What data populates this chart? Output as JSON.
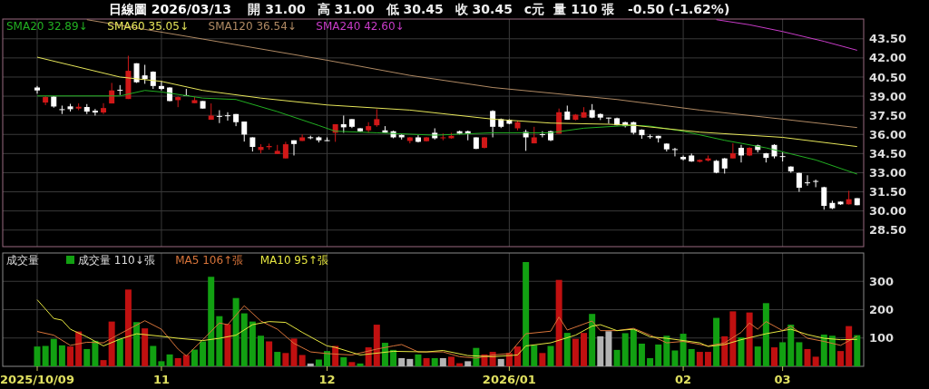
{
  "chart_data": [
    {
      "type": "candlestick",
      "title": "日線圖 2026/03/13",
      "annotations": [
        "開 31.00",
        "高 31.00",
        "低 30.45",
        "收 30.45",
        "c元",
        "量 110 張",
        "-0.50 (-1.62%)"
      ],
      "categories": [
        "2025/10/09",
        null,
        null,
        null,
        null,
        null,
        null,
        null,
        null,
        null,
        null,
        null,
        null,
        null,
        null,
        "11",
        null,
        null,
        null,
        null,
        null,
        null,
        null,
        null,
        null,
        null,
        null,
        null,
        null,
        null,
        null,
        null,
        null,
        null,
        null,
        "12",
        null,
        null,
        null,
        null,
        null,
        null,
        null,
        null,
        null,
        null,
        null,
        null,
        null,
        null,
        null,
        null,
        null,
        null,
        null,
        null,
        null,
        "2026/01",
        null,
        null,
        null,
        null,
        null,
        null,
        null,
        null,
        null,
        null,
        null,
        null,
        null,
        null,
        null,
        null,
        null,
        null,
        null,
        null,
        "02",
        null,
        null,
        null,
        null,
        null,
        null,
        null,
        null,
        null,
        null,
        null,
        "03",
        null,
        null,
        null,
        null,
        null,
        null,
        null,
        null,
        null
      ],
      "ohlc": [
        [
          39.68,
          39.8,
          39.2,
          39.45
        ],
        [
          38.5,
          39.0,
          38.3,
          38.93
        ],
        [
          38.97,
          39.0,
          38.1,
          38.19
        ],
        [
          37.98,
          38.26,
          37.6,
          37.95
        ],
        [
          38.2,
          38.4,
          37.8,
          37.98
        ],
        [
          38.03,
          38.43,
          37.9,
          38.17
        ],
        [
          38.15,
          38.38,
          37.6,
          37.79
        ],
        [
          37.86,
          38.0,
          37.48,
          37.72
        ],
        [
          37.72,
          38.45,
          37.6,
          38.07
        ],
        [
          38.43,
          40.04,
          38.43,
          39.45
        ],
        [
          39.5,
          39.87,
          39.09,
          39.45
        ],
        [
          38.78,
          42.17,
          38.78,
          40.99
        ],
        [
          41.58,
          41.58,
          40.04,
          40.09
        ],
        [
          40.63,
          41.46,
          39.97,
          40.35
        ],
        [
          40.92,
          40.95,
          39.57,
          39.8
        ],
        [
          39.8,
          40.2,
          39.45,
          39.57
        ],
        [
          39.68,
          39.7,
          38.6,
          38.62
        ],
        [
          38.69,
          38.98,
          38.14,
          38.93
        ],
        [
          39.08,
          39.57,
          39.0,
          39.05
        ],
        [
          38.45,
          38.93,
          38.45,
          38.69
        ],
        [
          38.62,
          38.62,
          38.03,
          38.03
        ],
        [
          37.15,
          38.43,
          37.15,
          37.48
        ],
        [
          37.45,
          37.9,
          36.89,
          37.43
        ],
        [
          37.5,
          37.74,
          37.08,
          37.48
        ],
        [
          37.6,
          37.6,
          36.65,
          36.96
        ],
        [
          37.01,
          37.01,
          35.44,
          35.99
        ],
        [
          35.77,
          35.77,
          34.66,
          35.02
        ],
        [
          34.78,
          35.23,
          34.52,
          35.02
        ],
        [
          35.0,
          35.28,
          34.8,
          35.09
        ],
        [
          34.47,
          35.18,
          34.47,
          34.71
        ],
        [
          34.12,
          35.42,
          34.12,
          35.23
        ],
        [
          35.54,
          35.54,
          34.35,
          35.25
        ],
        [
          35.49,
          36.0,
          35.49,
          35.77
        ],
        [
          35.78,
          35.9,
          35.62,
          35.77
        ],
        [
          35.77,
          35.85,
          35.37,
          35.54
        ],
        [
          35.55,
          35.77,
          35.49,
          35.52
        ],
        [
          36.13,
          36.8,
          35.42,
          36.8
        ],
        [
          36.8,
          37.48,
          36.13,
          36.56
        ],
        [
          37.2,
          37.2,
          36.5,
          36.6
        ],
        [
          36.48,
          36.5,
          36.2,
          36.25
        ],
        [
          36.32,
          36.96,
          36.13,
          36.65
        ],
        [
          36.72,
          37.98,
          36.6,
          37.2
        ],
        [
          36.32,
          36.65,
          36.13,
          36.13
        ],
        [
          36.25,
          36.3,
          35.7,
          35.77
        ],
        [
          35.96,
          36.0,
          35.6,
          35.77
        ],
        [
          35.49,
          35.8,
          35.3,
          35.77
        ],
        [
          35.77,
          35.94,
          35.37,
          35.42
        ],
        [
          35.47,
          35.8,
          35.44,
          35.77
        ],
        [
          36.13,
          36.48,
          35.6,
          35.7
        ],
        [
          35.72,
          36.08,
          35.54,
          35.77
        ],
        [
          35.7,
          36.13,
          35.66,
          35.89
        ],
        [
          36.25,
          36.3,
          36.0,
          36.06
        ],
        [
          36.25,
          36.3,
          35.54,
          36.06
        ],
        [
          35.77,
          35.77,
          34.85,
          34.87
        ],
        [
          34.95,
          35.8,
          34.9,
          35.77
        ],
        [
          37.84,
          37.9,
          35.77,
          36.6
        ],
        [
          37.2,
          37.25,
          36.5,
          36.6
        ],
        [
          37.15,
          37.2,
          36.8,
          36.84
        ],
        [
          36.48,
          37.08,
          36.32,
          36.96
        ],
        [
          36.2,
          36.37,
          34.71,
          35.77
        ],
        [
          35.3,
          36.6,
          35.3,
          35.77
        ],
        [
          36.02,
          36.25,
          35.77,
          36.0
        ],
        [
          36.25,
          36.3,
          35.47,
          35.54
        ],
        [
          36.06,
          38.03,
          36.06,
          37.74
        ],
        [
          37.79,
          38.26,
          37.15,
          37.15
        ],
        [
          37.15,
          37.6,
          37.1,
          37.55
        ],
        [
          37.32,
          38.14,
          37.32,
          37.74
        ],
        [
          37.91,
          38.38,
          37.27,
          37.32
        ],
        [
          37.6,
          37.65,
          37.13,
          37.32
        ],
        [
          37.32,
          37.32,
          36.84,
          37.3
        ],
        [
          37.27,
          37.32,
          36.7,
          36.72
        ],
        [
          36.96,
          37.0,
          36.55,
          36.65
        ],
        [
          36.96,
          37.0,
          36.0,
          36.13
        ],
        [
          36.37,
          36.4,
          35.66,
          35.94
        ],
        [
          35.86,
          36.0,
          35.66,
          35.84
        ],
        [
          35.89,
          35.9,
          35.37,
          35.7
        ],
        [
          35.28,
          35.3,
          34.66,
          34.83
        ],
        [
          34.85,
          34.95,
          34.28,
          34.83
        ],
        [
          34.24,
          34.35,
          33.95,
          34.05
        ],
        [
          34.35,
          34.5,
          33.85,
          33.88
        ],
        [
          33.86,
          34.05,
          33.8,
          34.0
        ],
        [
          33.95,
          34.35,
          33.88,
          34.12
        ],
        [
          33.93,
          34.0,
          32.95,
          33.0
        ],
        [
          34.12,
          34.15,
          32.93,
          33.33
        ],
        [
          34.12,
          35.3,
          34.12,
          34.52
        ],
        [
          34.95,
          35.18,
          33.8,
          34.35
        ],
        [
          34.35,
          35.0,
          34.3,
          34.95
        ],
        [
          35.14,
          35.2,
          34.59,
          34.78
        ],
        [
          34.52,
          34.55,
          33.8,
          34.16
        ],
        [
          35.18,
          35.23,
          34.12,
          34.28
        ],
        [
          34.3,
          34.59,
          33.88,
          34.26
        ],
        [
          33.48,
          33.5,
          33.0,
          33.1
        ],
        [
          32.98,
          33.0,
          31.5,
          31.82
        ],
        [
          32.24,
          32.8,
          31.98,
          32.22
        ],
        [
          32.35,
          32.46,
          31.86,
          32.33
        ],
        [
          31.86,
          31.9,
          30.1,
          30.4
        ],
        [
          30.63,
          30.8,
          30.14,
          30.21
        ],
        [
          30.73,
          30.75,
          30.48,
          30.52
        ],
        [
          30.52,
          31.58,
          30.5,
          30.92
        ],
        [
          31.0,
          31.0,
          30.45,
          30.45
        ]
      ],
      "colors": [
        "#ffffff",
        "#d01818",
        "#ffffff",
        "#ffffff",
        "#ffffff",
        "#d01818",
        "#ffffff",
        "#ffffff",
        "#d01818",
        "#d01818",
        "#ffffff",
        "#d01818",
        "#ffffff",
        "#ffffff",
        "#ffffff",
        "#ffffff",
        "#ffffff",
        "#d01818",
        "#ffffff",
        "#d01818",
        "#ffffff",
        "#d01818",
        "#ffffff",
        "#ffffff",
        "#ffffff",
        "#ffffff",
        "#ffffff",
        "#d01818",
        "#d01818",
        "#d01818",
        "#d01818",
        "#ffffff",
        "#d01818",
        "#ffffff",
        "#ffffff",
        "#ffffff",
        "#d01818",
        "#ffffff",
        "#ffffff",
        "#ffffff",
        "#d01818",
        "#d01818",
        "#ffffff",
        "#ffffff",
        "#ffffff",
        "#d01818",
        "#ffffff",
        "#d01818",
        "#ffffff",
        "#d01818",
        "#d01818",
        "#ffffff",
        "#ffffff",
        "#ffffff",
        "#d01818",
        "#ffffff",
        "#ffffff",
        "#ffffff",
        "#d01818",
        "#ffffff",
        "#d01818",
        "#ffffff",
        "#ffffff",
        "#d01818",
        "#ffffff",
        "#d01818",
        "#d01818",
        "#ffffff",
        "#ffffff",
        "#ffffff",
        "#ffffff",
        "#ffffff",
        "#ffffff",
        "#ffffff",
        "#ffffff",
        "#ffffff",
        "#ffffff",
        "#ffffff",
        "#ffffff",
        "#ffffff",
        "#d01818",
        "#d01818",
        "#ffffff",
        "#ffffff",
        "#d01818",
        "#ffffff",
        "#d01818",
        "#ffffff",
        "#ffffff",
        "#ffffff",
        "#ffffff",
        "#ffffff",
        "#ffffff",
        "#ffffff",
        "#ffffff",
        "#ffffff",
        "#ffffff",
        "#ffffff",
        "#d01818",
        "#ffffff"
      ],
      "series": [
        {
          "type": "line",
          "name": "SMA20 32.89↓",
          "color": "#22b022",
          "values": [
            39.02,
            null,
            null,
            null,
            null,
            null,
            null,
            null,
            null,
            null,
            39.02,
            null,
            null,
            39.45,
            null,
            39.33,
            null,
            null,
            null,
            null,
            38.85,
            null,
            null,
            null,
            38.74,
            null,
            null,
            null,
            null,
            37.79,
            null,
            null,
            null,
            null,
            36.7,
            null,
            36.25,
            null,
            null,
            null,
            null,
            36.13,
            null,
            null,
            null,
            null,
            null,
            null,
            35.94,
            null,
            null,
            null,
            null,
            null,
            null,
            36.13,
            null,
            null,
            null,
            null,
            null,
            null,
            36.13,
            null,
            null,
            null,
            36.49,
            null,
            null,
            null,
            36.65,
            null,
            36.72,
            null,
            36.65,
            null,
            null,
            null,
            36.25,
            null,
            null,
            null,
            null,
            35.54,
            null,
            null,
            null,
            null,
            34.95,
            null,
            null,
            null,
            null,
            null,
            34.0,
            null,
            null,
            null,
            null,
            32.89
          ]
        },
        {
          "type": "line",
          "name": "SMA60 35.05↓",
          "color": "#e6e65a",
          "values": [
            42.06,
            null,
            null,
            null,
            null,
            null,
            null,
            null,
            null,
            null,
            40.5,
            null,
            null,
            null,
            null,
            40.16,
            null,
            null,
            null,
            null,
            39.45,
            null,
            null,
            null,
            null,
            null,
            null,
            38.85,
            null,
            null,
            null,
            null,
            null,
            null,
            null,
            38.31,
            null,
            null,
            null,
            null,
            null,
            null,
            null,
            null,
            null,
            37.91,
            null,
            null,
            null,
            null,
            null,
            null,
            null,
            null,
            null,
            37.2,
            null,
            null,
            null,
            null,
            null,
            null,
            36.89,
            null,
            null,
            null,
            null,
            null,
            null,
            36.8,
            null,
            null,
            36.72,
            null,
            null,
            null,
            null,
            null,
            null,
            null,
            36.18,
            null,
            null,
            null,
            null,
            null,
            null,
            null,
            null,
            null,
            35.77,
            null,
            null,
            null,
            null,
            null,
            null,
            null,
            null,
            35.05
          ]
        },
        {
          "type": "line",
          "name": "SMA120 36.54↓",
          "color": "#b08a64",
          "values": [
            null,
            null,
            null,
            null,
            null,
            null,
            45.0,
            null,
            null,
            null,
            null,
            null,
            null,
            null,
            null,
            null,
            null,
            null,
            null,
            null,
            43.48,
            null,
            null,
            null,
            null,
            null,
            null,
            null,
            null,
            null,
            null,
            null,
            null,
            null,
            null,
            41.82,
            null,
            null,
            null,
            null,
            null,
            null,
            null,
            null,
            null,
            40.63,
            null,
            null,
            null,
            null,
            null,
            null,
            null,
            null,
            null,
            39.68,
            null,
            null,
            null,
            null,
            null,
            null,
            null,
            null,
            null,
            null,
            null,
            null,
            null,
            null,
            38.74,
            null,
            null,
            null,
            null,
            null,
            null,
            null,
            null,
            null,
            37.91,
            null,
            null,
            null,
            null,
            null,
            null,
            null,
            null,
            null,
            37.2,
            null,
            null,
            null,
            null,
            null,
            null,
            null,
            null,
            36.54
          ]
        },
        {
          "type": "line",
          "name": "SMA240 42.60↓",
          "color": "#c83cc8",
          "values": [
            null,
            null,
            null,
            null,
            null,
            null,
            null,
            null,
            null,
            null,
            null,
            null,
            null,
            null,
            null,
            null,
            null,
            null,
            null,
            null,
            null,
            null,
            null,
            null,
            null,
            null,
            null,
            null,
            null,
            null,
            null,
            null,
            null,
            null,
            null,
            null,
            null,
            null,
            null,
            null,
            null,
            null,
            null,
            null,
            null,
            null,
            null,
            null,
            null,
            null,
            null,
            null,
            null,
            null,
            null,
            null,
            null,
            null,
            null,
            null,
            null,
            null,
            null,
            null,
            null,
            null,
            null,
            null,
            null,
            null,
            null,
            null,
            null,
            null,
            null,
            null,
            null,
            null,
            null,
            null,
            null,
            null,
            45.0,
            null,
            null,
            null,
            44.6,
            null,
            null,
            null,
            44.07,
            null,
            null,
            null,
            null,
            43.3,
            null,
            null,
            null,
            42.6
          ]
        }
      ],
      "ylim": [
        27.2,
        45.05
      ],
      "yticks": [
        {
          "value": 28.5,
          "label": "28.50"
        },
        {
          "value": 30,
          "label": "30.00"
        },
        {
          "value": 31.5,
          "label": "31.50"
        },
        {
          "value": 33,
          "label": "33.00"
        },
        {
          "value": 34.5,
          "label": "34.50"
        },
        {
          "value": 36,
          "label": "36.00"
        },
        {
          "value": 37.5,
          "label": "37.50"
        },
        {
          "value": 39,
          "label": "39.00"
        },
        {
          "value": 40.5,
          "label": "40.50"
        },
        {
          "value": 42,
          "label": "42.00"
        },
        {
          "value": 43.5,
          "label": "43.50"
        }
      ],
      "grid": true,
      "legend": "top left",
      "tick_labels": "y"
    },
    {
      "type": "bar",
      "title": "成交量",
      "categories": [
        "2025/10/09",
        null,
        null,
        null,
        null,
        null,
        null,
        null,
        null,
        null,
        null,
        null,
        null,
        null,
        null,
        "11",
        null,
        null,
        null,
        null,
        null,
        null,
        null,
        null,
        null,
        null,
        null,
        null,
        null,
        null,
        null,
        null,
        null,
        null,
        null,
        "12",
        null,
        null,
        null,
        null,
        null,
        null,
        null,
        null,
        null,
        null,
        null,
        null,
        null,
        null,
        null,
        null,
        null,
        null,
        null,
        null,
        null,
        "2026/01",
        null,
        null,
        null,
        null,
        null,
        null,
        null,
        null,
        null,
        null,
        null,
        null,
        null,
        null,
        null,
        null,
        null,
        null,
        null,
        null,
        "02",
        null,
        null,
        null,
        null,
        null,
        null,
        null,
        null,
        null,
        null,
        null,
        "03",
        null,
        null,
        null,
        null,
        null,
        null,
        null,
        null,
        null
      ],
      "series": [
        {
          "name": "成交量 110↓張",
          "color": "#12a012",
          "values": [
            70,
            72,
            97,
            74,
            70,
            123,
            61,
            90,
            22,
            158,
            97,
            271,
            156,
            134,
            72,
            18,
            42,
            29,
            40,
            59,
            88,
            316,
            177,
            149,
            241,
            187,
            158,
            108,
            88,
            51,
            47,
            98,
            40,
            10,
            24,
            54,
            72,
            32,
            15,
            10,
            67,
            147,
            83,
            58,
            29,
            26,
            42,
            29,
            29,
            29,
            34,
            11,
            18,
            65,
            42,
            51,
            26,
            47,
            70,
            368,
            75,
            47,
            72,
            305,
            118,
            97,
            118,
            185,
            106,
            124,
            58,
            117,
            131,
            80,
            29,
            77,
            108,
            56,
            115,
            61,
            51,
            51,
            171,
            106,
            194,
            102,
            190,
            70,
            223,
            67,
            85,
            147,
            85,
            61,
            34,
            112,
            108,
            54,
            142,
            110
          ],
          "colors": [
            "#12a012",
            "#12a012",
            "#12a012",
            "#12a012",
            "#c01010",
            "#c01010",
            "#12a012",
            "#12a012",
            "#c01010",
            "#c01010",
            "#12a012",
            "#c01010",
            "#12a012",
            "#c01010",
            "#12a012",
            "#12a012",
            "#12a012",
            "#c01010",
            "#c01010",
            "#12a012",
            "#12a012",
            "#12a012",
            "#12a012",
            "#c01010",
            "#12a012",
            "#12a012",
            "#12a012",
            "#12a012",
            "#c01010",
            "#12a012",
            "#c01010",
            "#c01010",
            "#c01010",
            "#b4b4b4",
            "#12a012",
            "#12a012",
            "#c01010",
            "#12a012",
            "#c01010",
            "#12a012",
            "#c01010",
            "#c01010",
            "#12a012",
            "#12a012",
            "#b4b4b4",
            "#b4b4b4",
            "#12a012",
            "#c01010",
            "#12a012",
            "#b4b4b4",
            "#c01010",
            "#c01010",
            "#b4b4b4",
            "#12a012",
            "#c01010",
            "#c01010",
            "#b4b4b4",
            "#c01010",
            "#c01010",
            "#12a012",
            "#12a012",
            "#c01010",
            "#12a012",
            "#c01010",
            "#12a012",
            "#c01010",
            "#c01010",
            "#12a012",
            "#b4b4b4",
            "#b4b4b4",
            "#12a012",
            "#12a012",
            "#12a012",
            "#12a012",
            "#12a012",
            "#12a012",
            "#12a012",
            "#12a012",
            "#12a012",
            "#12a012",
            "#c01010",
            "#c01010",
            "#12a012",
            "#c01010",
            "#c01010",
            "#12a012",
            "#c01010",
            "#12a012",
            "#12a012",
            "#c01010",
            "#12a012",
            "#12a012",
            "#12a012",
            "#c01010",
            "#c01010",
            "#12a012",
            "#12a012",
            "#c01010",
            "#c01010",
            "#12a012"
          ]
        },
        {
          "type": "line",
          "name": "MA5 106↑張",
          "color": "#d8743a",
          "values": [
            123,
            null,
            110,
            null,
            74,
            null,
            85,
            null,
            83,
            null,
            115,
            null,
            null,
            161,
            null,
            131,
            null,
            61,
            37,
            null,
            94,
            null,
            153,
            147,
            null,
            214,
            null,
            160,
            null,
            131,
            null,
            81,
            null,
            51,
            null,
            45,
            null,
            null,
            40,
            null,
            null,
            61,
            null,
            72,
            77,
            null,
            51,
            null,
            null,
            51,
            null,
            34,
            null,
            29,
            null,
            40,
            null,
            45,
            null,
            115,
            null,
            null,
            124,
            174,
            128,
            null,
            null,
            160,
            126,
            null,
            126,
            null,
            134,
            null,
            110,
            null,
            83,
            null,
            88,
            null,
            null,
            72,
            null,
            83,
            null,
            120,
            153,
            131,
            158,
            null,
            126,
            142,
            null,
            99,
            null,
            88,
            null,
            74,
            null,
            106
          ]
        },
        {
          "type": "line",
          "name": "MA10 95↑張",
          "color": "#e6e640",
          "values": [
            235,
            null,
            169,
            163,
            131,
            null,
            104,
            null,
            72,
            null,
            96,
            null,
            115,
            null,
            null,
            106,
            null,
            99,
            null,
            null,
            91,
            null,
            99,
            null,
            110,
            null,
            147,
            null,
            158,
            null,
            155,
            null,
            120,
            null,
            null,
            72,
            67,
            null,
            null,
            40,
            null,
            null,
            null,
            53,
            null,
            null,
            null,
            51,
            null,
            56,
            null,
            null,
            38,
            null,
            null,
            34,
            null,
            null,
            40,
            72,
            null,
            null,
            83,
            null,
            null,
            110,
            null,
            142,
            147,
            null,
            126,
            null,
            131,
            null,
            104,
            null,
            99,
            null,
            null,
            null,
            83,
            70,
            null,
            77,
            null,
            94,
            null,
            null,
            115,
            null,
            null,
            131,
            null,
            112,
            null,
            99,
            null,
            94,
            null,
            95
          ]
        }
      ],
      "ylim": [
        0,
        400
      ],
      "yticks": [
        100,
        200,
        300
      ],
      "grid": true,
      "legend": "top left"
    }
  ]
}
